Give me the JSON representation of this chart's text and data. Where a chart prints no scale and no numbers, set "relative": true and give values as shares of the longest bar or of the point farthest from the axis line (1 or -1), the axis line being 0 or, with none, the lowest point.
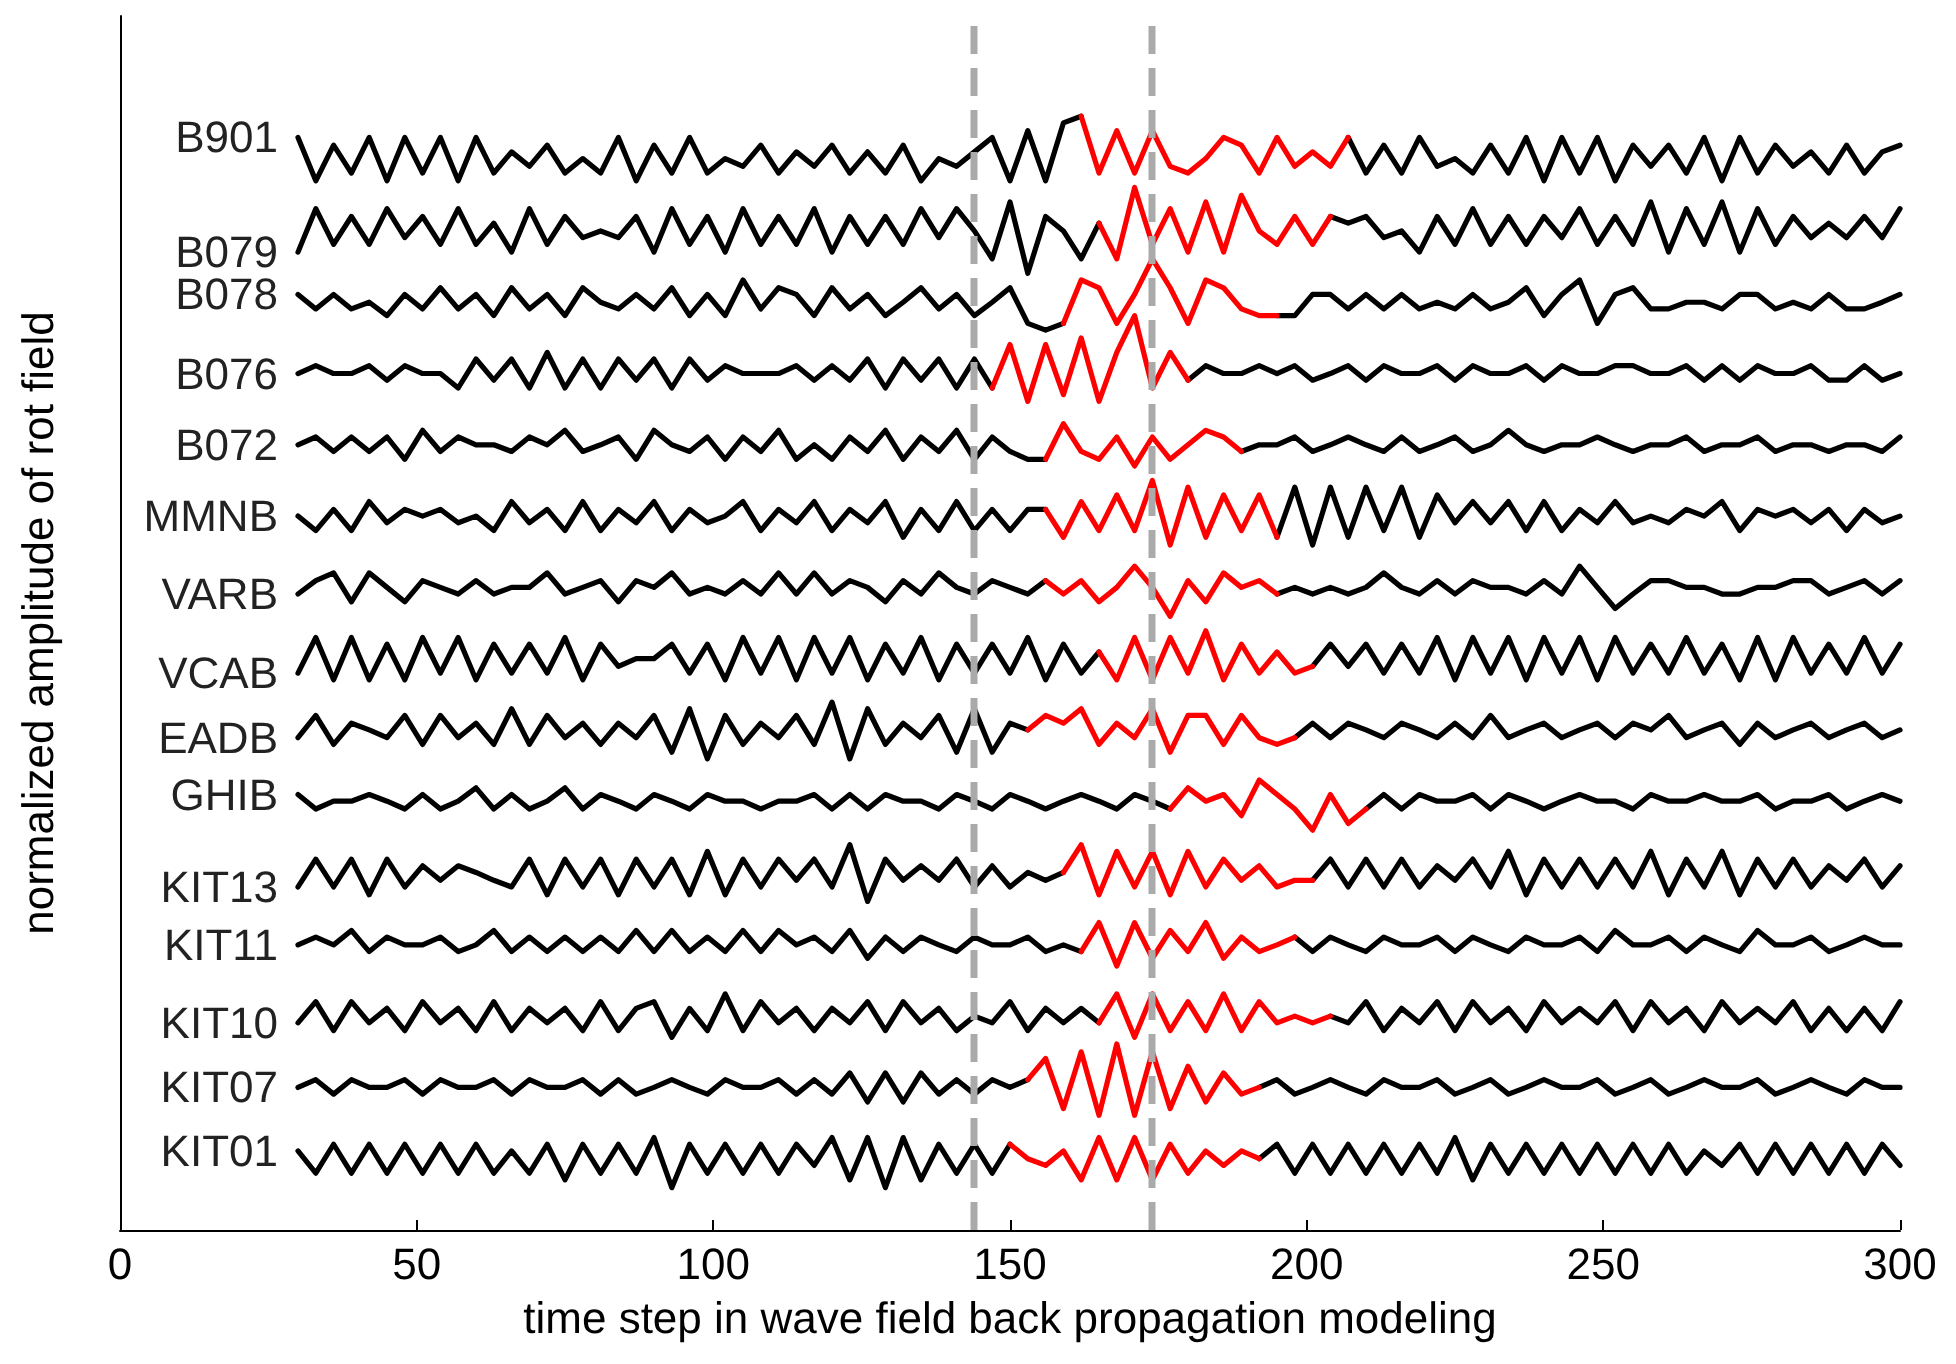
{
  "chart_data": {
    "type": "line",
    "relative": true,
    "xlabel": "time step in wave field back propagation modeling",
    "ylabel": "normalized amplitude of rot field",
    "x": [
      30,
      33,
      36,
      39,
      42,
      45,
      48,
      51,
      54,
      57,
      60,
      63,
      66,
      69,
      72,
      75,
      78,
      81,
      84,
      87,
      90,
      93,
      96,
      99,
      102,
      105,
      108,
      111,
      114,
      117,
      120,
      123,
      126,
      129,
      132,
      135,
      138,
      141,
      144,
      147,
      150,
      153,
      156,
      159,
      162,
      165,
      168,
      171,
      174,
      177,
      180,
      183,
      186,
      189,
      192,
      195,
      198,
      201,
      204,
      207,
      210,
      213,
      216,
      219,
      222,
      225,
      228,
      231,
      234,
      237,
      240,
      243,
      246,
      249,
      252,
      255,
      258,
      261,
      264,
      267,
      270,
      273,
      276,
      279,
      282,
      285,
      288,
      291,
      294,
      297,
      300
    ],
    "xlim": [
      0,
      300
    ],
    "xticks": [
      0,
      50,
      100,
      150,
      200,
      250,
      300
    ],
    "grid": false,
    "legend": false,
    "marker": "none",
    "line_style": "solid",
    "ref_lines": [
      {
        "axis": "x",
        "value": 144,
        "color": "#aaaaaa",
        "line_style": "dashed"
      },
      {
        "axis": "x",
        "value": 174,
        "color": "#aaaaaa",
        "line_style": "dashed"
      }
    ],
    "series": [
      {
        "name": "B901",
        "color": "#000000",
        "values": [
          0.981,
          0.942,
          0.974,
          0.949,
          0.981,
          0.942,
          0.981,
          0.949,
          0.981,
          0.942,
          0.981,
          0.949,
          0.968,
          0.955,
          0.974,
          0.949,
          0.962,
          0.949,
          0.981,
          0.942,
          0.974,
          0.949,
          0.981,
          0.949,
          0.962,
          0.955,
          0.974,
          0.949,
          0.968,
          0.955,
          0.974,
          0.949,
          0.968,
          0.949,
          0.974,
          0.942,
          0.962,
          0.955,
          0.968,
          0.981,
          0.942,
          0.987,
          0.942,
          0.994,
          1,
          null,
          null,
          null,
          null,
          null,
          null,
          null,
          null,
          null,
          null,
          null,
          null,
          null,
          null,
          0.981,
          0.949,
          0.974,
          0.949,
          0.981,
          0.955,
          0.962,
          0.949,
          0.974,
          0.949,
          0.981,
          0.942,
          0.981,
          0.949,
          0.981,
          0.942,
          0.974,
          0.955,
          0.974,
          0.949,
          0.981,
          0.942,
          0.981,
          0.949,
          0.974,
          0.955,
          0.968,
          0.949,
          0.974,
          0.949,
          0.968,
          0.974
        ]
      },
      {
        "color": "#ff0000",
        "x": [
          162,
          165,
          168,
          171,
          174,
          177,
          180,
          183,
          186,
          189,
          192,
          195,
          198,
          201,
          204,
          207
        ],
        "values": [
          1,
          0.949,
          0.987,
          0.949,
          0.987,
          0.955,
          0.949,
          0.962,
          0.981,
          0.974,
          0.949,
          0.981,
          0.955,
          0.968,
          0.955,
          0.981
        ]
      },
      {
        "name": "B079",
        "color": "#000000",
        "values": [
          0.878,
          0.917,
          0.885,
          0.91,
          0.885,
          0.917,
          0.891,
          0.91,
          0.885,
          0.917,
          0.885,
          0.904,
          0.878,
          0.917,
          0.885,
          0.91,
          0.891,
          0.897,
          0.891,
          0.91,
          0.878,
          0.917,
          0.885,
          0.91,
          0.878,
          0.917,
          0.885,
          0.91,
          0.885,
          0.917,
          0.878,
          0.91,
          0.885,
          0.91,
          0.885,
          0.917,
          0.891,
          0.917,
          0.897,
          0.872,
          0.923,
          0.859,
          0.91,
          0.897,
          0.872,
          0.904,
          null,
          null,
          null,
          null,
          null,
          null,
          null,
          null,
          null,
          null,
          null,
          null,
          0.91,
          0.904,
          0.91,
          0.891,
          0.897,
          0.878,
          0.91,
          0.885,
          0.917,
          0.885,
          0.91,
          0.885,
          0.91,
          0.891,
          0.917,
          0.885,
          0.91,
          0.885,
          0.923,
          0.878,
          0.917,
          0.885,
          0.923,
          0.878,
          0.917,
          0.885,
          0.91,
          0.891,
          0.904,
          0.891,
          0.91,
          0.891,
          0.917
        ]
      },
      {
        "color": "#ff0000",
        "x": [
          165,
          168,
          171,
          174,
          177,
          180,
          183,
          186,
          189,
          192,
          195,
          198,
          201,
          204
        ],
        "values": [
          0.904,
          0.872,
          0.936,
          0.885,
          0.917,
          0.878,
          0.923,
          0.878,
          0.929,
          0.897,
          0.885,
          0.91,
          0.885,
          0.91
        ]
      },
      {
        "name": "B078",
        "color": "#000000",
        "values": [
          0.84,
          0.827,
          0.84,
          0.827,
          0.833,
          0.821,
          0.84,
          0.827,
          0.846,
          0.827,
          0.84,
          0.821,
          0.846,
          0.827,
          0.84,
          0.821,
          0.846,
          0.833,
          0.827,
          0.84,
          0.827,
          0.846,
          0.821,
          0.84,
          0.821,
          0.853,
          0.827,
          0.846,
          0.84,
          0.821,
          0.846,
          0.827,
          0.84,
          0.821,
          0.833,
          0.846,
          0.827,
          0.84,
          0.821,
          0.833,
          0.846,
          0.814,
          0.808,
          0.814,
          null,
          null,
          null,
          null,
          null,
          null,
          null,
          null,
          null,
          null,
          null,
          0.821,
          0.821,
          0.84,
          0.84,
          0.827,
          0.84,
          0.827,
          0.84,
          0.827,
          0.833,
          0.827,
          0.84,
          0.827,
          0.833,
          0.846,
          0.821,
          0.84,
          0.853,
          0.814,
          0.84,
          0.846,
          0.827,
          0.827,
          0.833,
          0.833,
          0.827,
          0.84,
          0.84,
          0.827,
          0.833,
          0.827,
          0.84,
          0.827,
          0.827,
          0.833,
          0.84
        ]
      },
      {
        "color": "#ff0000",
        "x": [
          159,
          162,
          165,
          168,
          171,
          174,
          177,
          180,
          183,
          186,
          189,
          192,
          195
        ],
        "values": [
          0.814,
          0.853,
          0.846,
          0.814,
          0.84,
          0.872,
          0.846,
          0.814,
          0.853,
          0.846,
          0.827,
          0.821,
          0.821
        ]
      },
      {
        "name": "B076",
        "color": "#000000",
        "values": [
          0.769,
          0.776,
          0.769,
          0.769,
          0.776,
          0.763,
          0.776,
          0.769,
          0.769,
          0.756,
          0.782,
          0.763,
          0.782,
          0.756,
          0.788,
          0.756,
          0.782,
          0.756,
          0.782,
          0.763,
          0.782,
          0.756,
          0.782,
          0.763,
          0.776,
          0.769,
          0.769,
          0.769,
          0.776,
          0.763,
          0.776,
          0.763,
          0.782,
          0.756,
          0.782,
          0.763,
          0.782,
          0.756,
          0.782,
          0.756,
          null,
          null,
          null,
          null,
          null,
          null,
          null,
          null,
          null,
          null,
          0.763,
          0.776,
          0.769,
          0.769,
          0.776,
          0.769,
          0.776,
          0.763,
          0.769,
          0.776,
          0.763,
          0.776,
          0.769,
          0.769,
          0.776,
          0.763,
          0.776,
          0.769,
          0.769,
          0.776,
          0.763,
          0.776,
          0.769,
          0.769,
          0.776,
          0.776,
          0.769,
          0.769,
          0.776,
          0.763,
          0.776,
          0.763,
          0.776,
          0.769,
          0.769,
          0.776,
          0.763,
          0.763,
          0.776,
          0.763,
          0.769
        ]
      },
      {
        "color": "#ff0000",
        "x": [
          147,
          150,
          153,
          156,
          159,
          162,
          165,
          168,
          171,
          174,
          177,
          180
        ],
        "values": [
          0.756,
          0.795,
          0.744,
          0.795,
          0.75,
          0.801,
          0.744,
          0.788,
          0.821,
          0.756,
          0.788,
          0.763
        ]
      },
      {
        "name": "B072",
        "color": "#000000",
        "values": [
          0.705,
          0.712,
          0.699,
          0.712,
          0.699,
          0.712,
          0.692,
          0.718,
          0.699,
          0.712,
          0.705,
          0.705,
          0.699,
          0.712,
          0.705,
          0.718,
          0.699,
          0.705,
          0.712,
          0.692,
          0.718,
          0.705,
          0.699,
          0.712,
          0.692,
          0.712,
          0.699,
          0.718,
          0.692,
          0.705,
          0.692,
          0.712,
          0.699,
          0.718,
          0.692,
          0.712,
          0.699,
          0.718,
          0.692,
          0.712,
          0.699,
          0.692,
          0.692,
          null,
          null,
          null,
          null,
          null,
          null,
          null,
          null,
          null,
          null,
          0.699,
          0.705,
          0.705,
          0.712,
          0.699,
          0.705,
          0.712,
          0.705,
          0.699,
          0.712,
          0.699,
          0.705,
          0.712,
          0.699,
          0.705,
          0.718,
          0.705,
          0.699,
          0.705,
          0.705,
          0.712,
          0.705,
          0.699,
          0.705,
          0.705,
          0.712,
          0.699,
          0.705,
          0.705,
          0.712,
          0.699,
          0.705,
          0.705,
          0.699,
          0.705,
          0.705,
          0.699,
          0.712
        ]
      },
      {
        "color": "#ff0000",
        "x": [
          156,
          159,
          162,
          165,
          168,
          171,
          174,
          177,
          180,
          183,
          186,
          189
        ],
        "values": [
          0.692,
          0.724,
          0.699,
          0.692,
          0.712,
          0.686,
          0.712,
          0.692,
          0.705,
          0.718,
          0.712,
          0.699
        ]
      },
      {
        "name": "MMNB",
        "color": "#000000",
        "values": [
          0.641,
          0.628,
          0.647,
          0.628,
          0.654,
          0.635,
          0.647,
          0.641,
          0.647,
          0.635,
          0.641,
          0.628,
          0.654,
          0.635,
          0.647,
          0.628,
          0.654,
          0.628,
          0.647,
          0.635,
          0.654,
          0.628,
          0.647,
          0.635,
          0.641,
          0.654,
          0.628,
          0.647,
          0.635,
          0.654,
          0.628,
          0.647,
          0.635,
          0.654,
          0.622,
          0.647,
          0.628,
          0.654,
          0.628,
          0.647,
          0.628,
          0.647,
          0.647,
          null,
          null,
          null,
          null,
          null,
          null,
          null,
          null,
          null,
          null,
          null,
          null,
          0.622,
          0.667,
          0.615,
          0.667,
          0.622,
          0.667,
          0.628,
          0.667,
          0.622,
          0.66,
          0.635,
          0.654,
          0.635,
          0.654,
          0.628,
          0.654,
          0.628,
          0.647,
          0.635,
          0.654,
          0.635,
          0.641,
          0.635,
          0.647,
          0.641,
          0.654,
          0.628,
          0.647,
          0.641,
          0.647,
          0.635,
          0.647,
          0.628,
          0.647,
          0.635,
          0.641
        ]
      },
      {
        "color": "#ff0000",
        "x": [
          156,
          159,
          162,
          165,
          168,
          171,
          174,
          177,
          180,
          183,
          186,
          189,
          192,
          195
        ],
        "values": [
          0.647,
          0.622,
          0.654,
          0.628,
          0.66,
          0.628,
          0.673,
          0.615,
          0.667,
          0.622,
          0.66,
          0.628,
          0.66,
          0.622
        ]
      },
      {
        "name": "VARB",
        "color": "#000000",
        "values": [
          0.571,
          0.583,
          0.59,
          0.564,
          0.59,
          0.577,
          0.564,
          0.583,
          0.577,
          0.571,
          0.583,
          0.571,
          0.577,
          0.577,
          0.59,
          0.571,
          0.577,
          0.583,
          0.564,
          0.583,
          0.577,
          0.59,
          0.571,
          0.577,
          0.571,
          0.583,
          0.571,
          0.59,
          0.571,
          0.59,
          0.571,
          0.583,
          0.577,
          0.564,
          0.583,
          0.571,
          0.59,
          0.577,
          0.571,
          0.583,
          0.577,
          0.571,
          0.583,
          null,
          null,
          null,
          null,
          null,
          null,
          null,
          null,
          null,
          null,
          null,
          null,
          0.571,
          0.577,
          0.571,
          0.577,
          0.571,
          0.577,
          0.59,
          0.577,
          0.571,
          0.583,
          0.571,
          0.583,
          0.577,
          0.577,
          0.571,
          0.583,
          0.571,
          0.596,
          0.577,
          0.558,
          0.571,
          0.583,
          0.583,
          0.577,
          0.577,
          0.571,
          0.571,
          0.577,
          0.577,
          0.583,
          0.583,
          0.571,
          0.577,
          0.583,
          0.571,
          0.583
        ]
      },
      {
        "color": "#ff0000",
        "x": [
          156,
          159,
          162,
          165,
          168,
          171,
          174,
          177,
          180,
          183,
          186,
          189,
          192,
          195
        ],
        "values": [
          0.583,
          0.571,
          0.583,
          0.564,
          0.577,
          0.596,
          0.577,
          0.551,
          0.583,
          0.564,
          0.59,
          0.577,
          0.583,
          0.571
        ]
      },
      {
        "name": "VCAB",
        "color": "#000000",
        "values": [
          0.5,
          0.532,
          0.494,
          0.532,
          0.494,
          0.526,
          0.494,
          0.532,
          0.5,
          0.532,
          0.494,
          0.526,
          0.5,
          0.526,
          0.5,
          0.532,
          0.494,
          0.526,
          0.506,
          0.513,
          0.513,
          0.526,
          0.5,
          0.526,
          0.494,
          0.532,
          0.5,
          0.532,
          0.494,
          0.532,
          0.5,
          0.532,
          0.494,
          0.526,
          0.5,
          0.532,
          0.494,
          0.526,
          0.5,
          0.526,
          0.5,
          0.532,
          0.494,
          0.526,
          0.5,
          0.519,
          null,
          null,
          null,
          null,
          null,
          null,
          null,
          null,
          null,
          null,
          null,
          0.506,
          0.526,
          0.506,
          0.526,
          0.5,
          0.526,
          0.5,
          0.532,
          0.494,
          0.532,
          0.5,
          0.532,
          0.494,
          0.532,
          0.5,
          0.532,
          0.494,
          0.532,
          0.5,
          0.526,
          0.5,
          0.532,
          0.5,
          0.526,
          0.494,
          0.532,
          0.494,
          0.532,
          0.5,
          0.526,
          0.5,
          0.532,
          0.5,
          0.526
        ]
      },
      {
        "color": "#ff0000",
        "x": [
          165,
          168,
          171,
          174,
          177,
          180,
          183,
          186,
          189,
          192,
          195,
          198,
          201
        ],
        "values": [
          0.519,
          0.494,
          0.532,
          0.494,
          0.532,
          0.5,
          0.538,
          0.494,
          0.526,
          0.5,
          0.519,
          0.5,
          0.506
        ]
      },
      {
        "name": "EADB",
        "color": "#000000",
        "values": [
          0.442,
          0.462,
          0.436,
          0.455,
          0.449,
          0.442,
          0.462,
          0.436,
          0.462,
          0.442,
          0.455,
          0.436,
          0.468,
          0.436,
          0.462,
          0.442,
          0.455,
          0.436,
          0.455,
          0.442,
          0.462,
          0.429,
          0.468,
          0.423,
          0.462,
          0.436,
          0.455,
          0.442,
          0.462,
          0.436,
          0.474,
          0.423,
          0.468,
          0.436,
          0.455,
          0.442,
          0.462,
          0.429,
          0.468,
          0.429,
          0.455,
          0.449,
          null,
          null,
          null,
          null,
          null,
          null,
          null,
          null,
          null,
          null,
          null,
          null,
          null,
          null,
          0.442,
          0.455,
          0.442,
          0.455,
          0.449,
          0.442,
          0.455,
          0.449,
          0.442,
          0.455,
          0.442,
          0.462,
          0.442,
          0.449,
          0.455,
          0.442,
          0.449,
          0.455,
          0.442,
          0.455,
          0.449,
          0.462,
          0.442,
          0.449,
          0.455,
          0.436,
          0.455,
          0.442,
          0.449,
          0.455,
          0.442,
          0.449,
          0.455,
          0.442,
          0.449
        ]
      },
      {
        "color": "#ff0000",
        "x": [
          153,
          156,
          159,
          162,
          165,
          168,
          171,
          174,
          177,
          180,
          183,
          186,
          189,
          192,
          195,
          198
        ],
        "values": [
          0.449,
          0.462,
          0.455,
          0.468,
          0.436,
          0.455,
          0.442,
          0.468,
          0.429,
          0.462,
          0.462,
          0.436,
          0.462,
          0.442,
          0.436,
          0.442
        ]
      },
      {
        "name": "GHIB",
        "color": "#000000",
        "values": [
          0.391,
          0.378,
          0.385,
          0.385,
          0.391,
          0.385,
          0.378,
          0.391,
          0.378,
          0.385,
          0.397,
          0.378,
          0.391,
          0.378,
          0.385,
          0.397,
          0.378,
          0.391,
          0.385,
          0.378,
          0.391,
          0.385,
          0.378,
          0.391,
          0.385,
          0.385,
          0.378,
          0.385,
          0.385,
          0.391,
          0.378,
          0.391,
          0.378,
          0.391,
          0.385,
          0.385,
          0.378,
          0.391,
          0.385,
          0.378,
          0.391,
          0.385,
          0.378,
          0.385,
          0.391,
          0.385,
          0.378,
          0.391,
          0.385,
          0.378,
          null,
          null,
          null,
          null,
          null,
          null,
          null,
          null,
          null,
          null,
          0.378,
          0.391,
          0.378,
          0.391,
          0.385,
          0.385,
          0.391,
          0.378,
          0.391,
          0.385,
          0.378,
          0.385,
          0.391,
          0.385,
          0.385,
          0.378,
          0.391,
          0.385,
          0.385,
          0.391,
          0.385,
          0.385,
          0.391,
          0.378,
          0.385,
          0.385,
          0.391,
          0.378,
          0.385,
          0.391,
          0.385
        ]
      },
      {
        "color": "#ff0000",
        "x": [
          177,
          180,
          183,
          186,
          189,
          192,
          195,
          198,
          201,
          204,
          207,
          210
        ],
        "values": [
          0.378,
          0.397,
          0.385,
          0.391,
          0.372,
          0.404,
          0.391,
          0.378,
          0.359,
          0.391,
          0.365,
          0.378
        ]
      },
      {
        "name": "KIT13",
        "color": "#000000",
        "values": [
          0.308,
          0.333,
          0.308,
          0.333,
          0.301,
          0.333,
          0.308,
          0.327,
          0.314,
          0.327,
          0.321,
          0.314,
          0.308,
          0.333,
          0.301,
          0.333,
          0.308,
          0.333,
          0.301,
          0.333,
          0.308,
          0.333,
          0.301,
          0.34,
          0.301,
          0.333,
          0.308,
          0.333,
          0.314,
          0.333,
          0.308,
          0.346,
          0.295,
          0.333,
          0.314,
          0.327,
          0.314,
          0.333,
          0.308,
          0.327,
          0.308,
          0.321,
          0.314,
          0.321,
          null,
          null,
          null,
          null,
          null,
          null,
          null,
          null,
          null,
          null,
          null,
          null,
          null,
          0.314,
          0.333,
          0.308,
          0.333,
          0.308,
          0.333,
          0.308,
          0.327,
          0.314,
          0.333,
          0.308,
          0.34,
          0.301,
          0.333,
          0.308,
          0.333,
          0.308,
          0.333,
          0.308,
          0.34,
          0.301,
          0.333,
          0.308,
          0.34,
          0.301,
          0.333,
          0.308,
          0.333,
          0.308,
          0.327,
          0.314,
          0.333,
          0.308,
          0.327
        ]
      },
      {
        "color": "#ff0000",
        "x": [
          159,
          162,
          165,
          168,
          171,
          174,
          177,
          180,
          183,
          186,
          189,
          192,
          195,
          198,
          201
        ],
        "values": [
          0.321,
          0.346,
          0.301,
          0.34,
          0.308,
          0.34,
          0.301,
          0.34,
          0.308,
          0.333,
          0.314,
          0.327,
          0.308,
          0.314,
          0.314
        ]
      },
      {
        "name": "KIT11",
        "color": "#000000",
        "values": [
          0.256,
          0.263,
          0.256,
          0.269,
          0.25,
          0.263,
          0.256,
          0.256,
          0.263,
          0.25,
          0.256,
          0.269,
          0.25,
          0.263,
          0.25,
          0.263,
          0.25,
          0.263,
          0.25,
          0.269,
          0.25,
          0.269,
          0.25,
          0.263,
          0.25,
          0.269,
          0.25,
          0.269,
          0.256,
          0.263,
          0.25,
          0.269,
          0.244,
          0.263,
          0.25,
          0.263,
          0.256,
          0.25,
          0.263,
          0.256,
          0.256,
          0.263,
          0.25,
          0.256,
          0.25,
          null,
          null,
          null,
          null,
          null,
          null,
          null,
          null,
          null,
          null,
          null,
          0.263,
          0.25,
          0.263,
          0.256,
          0.25,
          0.263,
          0.256,
          0.256,
          0.263,
          0.25,
          0.263,
          0.256,
          0.25,
          0.263,
          0.256,
          0.256,
          0.263,
          0.25,
          0.269,
          0.256,
          0.256,
          0.263,
          0.25,
          0.263,
          0.256,
          0.25,
          0.269,
          0.256,
          0.256,
          0.263,
          0.25,
          0.256,
          0.263,
          0.256,
          0.256
        ]
      },
      {
        "color": "#ff0000",
        "x": [
          162,
          165,
          168,
          171,
          174,
          177,
          180,
          183,
          186,
          189,
          192,
          195,
          198
        ],
        "values": [
          0.25,
          0.276,
          0.237,
          0.276,
          0.244,
          0.269,
          0.25,
          0.276,
          0.244,
          0.263,
          0.25,
          0.256,
          0.263
        ]
      },
      {
        "name": "KIT10",
        "color": "#000000",
        "values": [
          0.186,
          0.205,
          0.179,
          0.205,
          0.186,
          0.199,
          0.179,
          0.205,
          0.186,
          0.199,
          0.179,
          0.205,
          0.179,
          0.199,
          0.186,
          0.199,
          0.179,
          0.205,
          0.179,
          0.199,
          0.205,
          0.173,
          0.199,
          0.179,
          0.212,
          0.179,
          0.205,
          0.186,
          0.199,
          0.179,
          0.199,
          0.186,
          0.205,
          0.179,
          0.205,
          0.186,
          0.199,
          0.179,
          0.192,
          0.186,
          0.205,
          0.179,
          0.199,
          0.186,
          0.199,
          0.186,
          null,
          null,
          null,
          null,
          null,
          null,
          null,
          null,
          null,
          null,
          null,
          null,
          0.192,
          0.186,
          0.205,
          0.179,
          0.199,
          0.186,
          0.205,
          0.179,
          0.205,
          0.186,
          0.199,
          0.179,
          0.205,
          0.186,
          0.199,
          0.186,
          0.205,
          0.179,
          0.205,
          0.186,
          0.199,
          0.179,
          0.205,
          0.186,
          0.199,
          0.186,
          0.205,
          0.179,
          0.199,
          0.179,
          0.199,
          0.179,
          0.205
        ]
      },
      {
        "color": "#ff0000",
        "x": [
          165,
          168,
          171,
          174,
          177,
          180,
          183,
          186,
          189,
          192,
          195,
          198,
          201,
          204
        ],
        "values": [
          0.186,
          0.212,
          0.173,
          0.212,
          0.179,
          0.205,
          0.179,
          0.212,
          0.179,
          0.205,
          0.186,
          0.192,
          0.186,
          0.192
        ]
      },
      {
        "name": "KIT07",
        "color": "#000000",
        "values": [
          0.128,
          0.135,
          0.122,
          0.135,
          0.128,
          0.128,
          0.135,
          0.122,
          0.135,
          0.128,
          0.128,
          0.135,
          0.122,
          0.135,
          0.128,
          0.128,
          0.135,
          0.122,
          0.135,
          0.122,
          0.128,
          0.135,
          0.128,
          0.122,
          0.135,
          0.128,
          0.128,
          0.135,
          0.122,
          0.135,
          0.122,
          0.141,
          0.115,
          0.141,
          0.115,
          0.141,
          0.122,
          0.135,
          0.122,
          0.135,
          0.128,
          0.135,
          null,
          null,
          null,
          null,
          null,
          null,
          null,
          null,
          null,
          null,
          null,
          null,
          0.128,
          0.135,
          0.122,
          0.128,
          0.135,
          0.128,
          0.122,
          0.135,
          0.128,
          0.128,
          0.135,
          0.122,
          0.128,
          0.135,
          0.122,
          0.128,
          0.135,
          0.128,
          0.128,
          0.135,
          0.122,
          0.128,
          0.135,
          0.122,
          0.128,
          0.135,
          0.128,
          0.128,
          0.135,
          0.122,
          0.128,
          0.135,
          0.128,
          0.122,
          0.135,
          0.128,
          0.128
        ]
      },
      {
        "color": "#ff0000",
        "x": [
          153,
          156,
          159,
          162,
          165,
          168,
          171,
          174,
          177,
          180,
          183,
          186,
          189,
          192
        ],
        "values": [
          0.135,
          0.154,
          0.109,
          0.16,
          0.103,
          0.167,
          0.103,
          0.16,
          0.109,
          0.147,
          0.115,
          0.141,
          0.122,
          0.128
        ]
      },
      {
        "name": "KIT01",
        "color": "#000000",
        "values": [
          0.071,
          0.051,
          0.077,
          0.051,
          0.077,
          0.051,
          0.077,
          0.051,
          0.077,
          0.051,
          0.077,
          0.051,
          0.071,
          0.051,
          0.077,
          0.045,
          0.077,
          0.051,
          0.077,
          0.051,
          0.083,
          0.038,
          0.077,
          0.051,
          0.077,
          0.051,
          0.077,
          0.051,
          0.077,
          0.058,
          0.083,
          0.045,
          0.083,
          0.038,
          0.083,
          0.045,
          0.077,
          0.051,
          0.077,
          0.051,
          0.077,
          null,
          null,
          null,
          null,
          null,
          null,
          null,
          null,
          null,
          null,
          null,
          null,
          null,
          0.064,
          0.077,
          0.051,
          0.077,
          0.051,
          0.077,
          0.051,
          0.077,
          0.051,
          0.077,
          0.051,
          0.083,
          0.045,
          0.077,
          0.051,
          0.077,
          0.051,
          0.077,
          0.051,
          0.077,
          0.051,
          0.077,
          0.051,
          0.077,
          0.051,
          0.071,
          0.058,
          0.077,
          0.051,
          0.077,
          0.051,
          0.077,
          0.051,
          0.077,
          0.051,
          0.077,
          0.058
        ]
      },
      {
        "color": "#ff0000",
        "x": [
          150,
          153,
          156,
          159,
          162,
          165,
          168,
          171,
          174,
          177,
          180,
          183,
          186,
          189,
          192
        ],
        "values": [
          0.077,
          0.064,
          0.058,
          0.071,
          0.045,
          0.083,
          0.045,
          0.083,
          0.045,
          0.077,
          0.051,
          0.071,
          0.058,
          0.071,
          0.064
        ]
      }
    ]
  }
}
